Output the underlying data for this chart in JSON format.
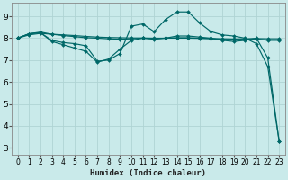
{
  "title": "",
  "xlabel": "Humidex (Indice chaleur)",
  "bg_color": "#c9eaea",
  "grid_color": "#afd4d4",
  "line_color": "#006868",
  "xlim": [
    -0.5,
    23.5
  ],
  "ylim": [
    2.7,
    9.6
  ],
  "xticks": [
    0,
    1,
    2,
    3,
    4,
    5,
    6,
    7,
    8,
    9,
    10,
    11,
    12,
    13,
    14,
    15,
    16,
    17,
    18,
    19,
    20,
    21,
    22,
    23
  ],
  "yticks": [
    3,
    4,
    5,
    6,
    7,
    8,
    9
  ],
  "series": [
    {
      "x": [
        0,
        1,
        2,
        3,
        4,
        5,
        6,
        7,
        8,
        9,
        10,
        11,
        12,
        13,
        14,
        15,
        16,
        17,
        18,
        19,
        20,
        21,
        22,
        23
      ],
      "y": [
        8.0,
        8.2,
        8.25,
        7.9,
        7.8,
        7.75,
        7.65,
        6.95,
        7.0,
        7.3,
        8.55,
        8.65,
        8.3,
        8.85,
        9.2,
        9.2,
        8.7,
        8.3,
        8.15,
        8.1,
        8.0,
        7.75,
        6.7,
        3.3
      ]
    },
    {
      "x": [
        0,
        1,
        2,
        3,
        4,
        5,
        6,
        7,
        8,
        9,
        10,
        11,
        12,
        13,
        14,
        15,
        16,
        17,
        18,
        19,
        20,
        21,
        22,
        23
      ],
      "y": [
        8.0,
        8.2,
        8.25,
        7.85,
        7.7,
        7.55,
        7.4,
        6.9,
        7.05,
        7.5,
        7.9,
        8.0,
        7.95,
        8.0,
        8.1,
        8.1,
        8.05,
        8.0,
        7.9,
        7.85,
        7.9,
        8.0,
        7.1,
        3.3
      ]
    },
    {
      "x": [
        0,
        1,
        2,
        3,
        4,
        5,
        6,
        7,
        8,
        9,
        10,
        11,
        12,
        13,
        14,
        15,
        16,
        17,
        18,
        19,
        20,
        21,
        22,
        23
      ],
      "y": [
        8.0,
        8.2,
        8.28,
        8.18,
        8.12,
        8.07,
        8.02,
        8.0,
        7.97,
        7.95,
        7.97,
        8.0,
        7.98,
        8.0,
        8.02,
        8.02,
        8.0,
        7.98,
        7.95,
        7.92,
        7.95,
        7.97,
        7.9,
        7.9
      ]
    },
    {
      "x": [
        0,
        1,
        2,
        3,
        4,
        5,
        6,
        7,
        8,
        9,
        10,
        11,
        12,
        13,
        14,
        15,
        16,
        17,
        18,
        19,
        20,
        21,
        22,
        23
      ],
      "y": [
        8.0,
        8.15,
        8.22,
        8.18,
        8.15,
        8.12,
        8.08,
        8.05,
        8.03,
        8.02,
        8.01,
        8.01,
        8.0,
        8.0,
        8.0,
        8.0,
        7.99,
        7.98,
        7.97,
        7.96,
        7.97,
        7.98,
        7.97,
        7.97
      ]
    }
  ]
}
